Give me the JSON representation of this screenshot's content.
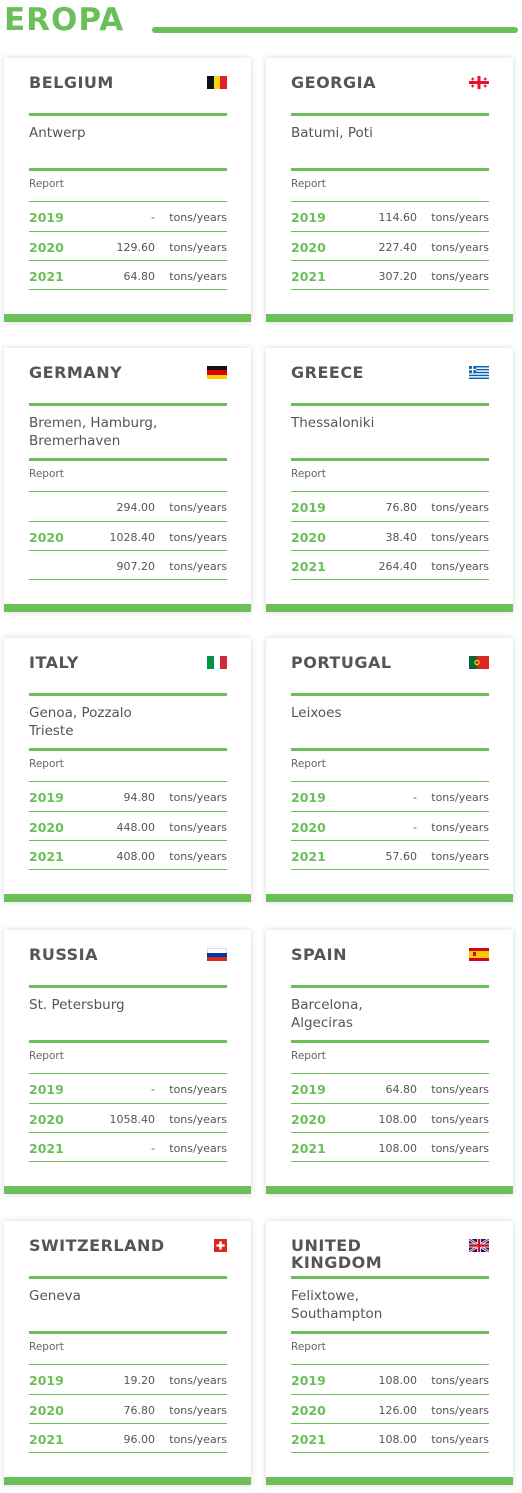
{
  "page": {
    "title": "EROPA"
  },
  "unit": "tons/years",
  "report_label": "Report",
  "cards": [
    {
      "country": "BELGIUM",
      "flag": "belgium-flag-icon",
      "ports": "Antwerp",
      "rows": [
        {
          "year": "2019",
          "value": "-"
        },
        {
          "year": "2020",
          "value": "129.60"
        },
        {
          "year": "2021",
          "value": "64.80"
        }
      ]
    },
    {
      "country": "GEORGIA",
      "flag": "georgia-flag-icon",
      "ports": "Batumi, Poti",
      "rows": [
        {
          "year": "2019",
          "value": "114.60"
        },
        {
          "year": "2020",
          "value": "227.40"
        },
        {
          "year": "2021",
          "value": "307.20"
        }
      ]
    },
    {
      "country": "GERMANY",
      "flag": "germany-flag-icon",
      "ports": "Bremen, Hamburg,\nBremerhaven",
      "rows": [
        {
          "year": "",
          "value": "294.00"
        },
        {
          "year": "2020",
          "value": "1028.40"
        },
        {
          "year": "",
          "value": "907.20"
        }
      ]
    },
    {
      "country": "GREECE",
      "flag": "greece-flag-icon",
      "ports": "Thessaloniki",
      "rows": [
        {
          "year": "2019",
          "value": "76.80"
        },
        {
          "year": "2020",
          "value": "38.40"
        },
        {
          "year": "2021",
          "value": "264.40"
        }
      ]
    },
    {
      "country": "ITALY",
      "flag": "italy-flag-icon",
      "ports": "Genoa, Pozzalo\nTrieste",
      "rows": [
        {
          "year": "2019",
          "value": "94.80"
        },
        {
          "year": "2020",
          "value": "448.00"
        },
        {
          "year": "2021",
          "value": "408.00"
        }
      ]
    },
    {
      "country": "PORTUGAL",
      "flag": "portugal-flag-icon",
      "ports": "Leixoes",
      "rows": [
        {
          "year": "2019",
          "value": "-"
        },
        {
          "year": "2020",
          "value": "-"
        },
        {
          "year": "2021",
          "value": "57.60"
        }
      ]
    },
    {
      "country": "RUSSIA",
      "flag": "russia-flag-icon",
      "ports": "St. Petersburg",
      "rows": [
        {
          "year": "2019",
          "value": "-"
        },
        {
          "year": "2020",
          "value": "1058.40"
        },
        {
          "year": "2021",
          "value": "-"
        }
      ]
    },
    {
      "country": "SPAIN",
      "flag": "spain-flag-icon",
      "ports": "Barcelona,\nAlgeciras",
      "rows": [
        {
          "year": "2019",
          "value": "64.80"
        },
        {
          "year": "2020",
          "value": "108.00"
        },
        {
          "year": "2021",
          "value": "108.00"
        }
      ]
    },
    {
      "country": "SWITZERLAND",
      "flag": "switzerland-flag-icon",
      "ports": "Geneva",
      "rows": [
        {
          "year": "2019",
          "value": "19.20"
        },
        {
          "year": "2020",
          "value": "76.80"
        },
        {
          "year": "2021",
          "value": "96.00"
        }
      ]
    },
    {
      "country": "UNITED\nKINGDOM",
      "flag": "united-kingdom-flag-icon",
      "ports": "Felixtowe,\nSouthampton",
      "rows": [
        {
          "year": "2019",
          "value": "108.00"
        },
        {
          "year": "2020",
          "value": "126.00"
        },
        {
          "year": "2021",
          "value": "108.00"
        }
      ]
    }
  ],
  "colors": {
    "accent": "#6bbf59",
    "text": "#555555"
  }
}
